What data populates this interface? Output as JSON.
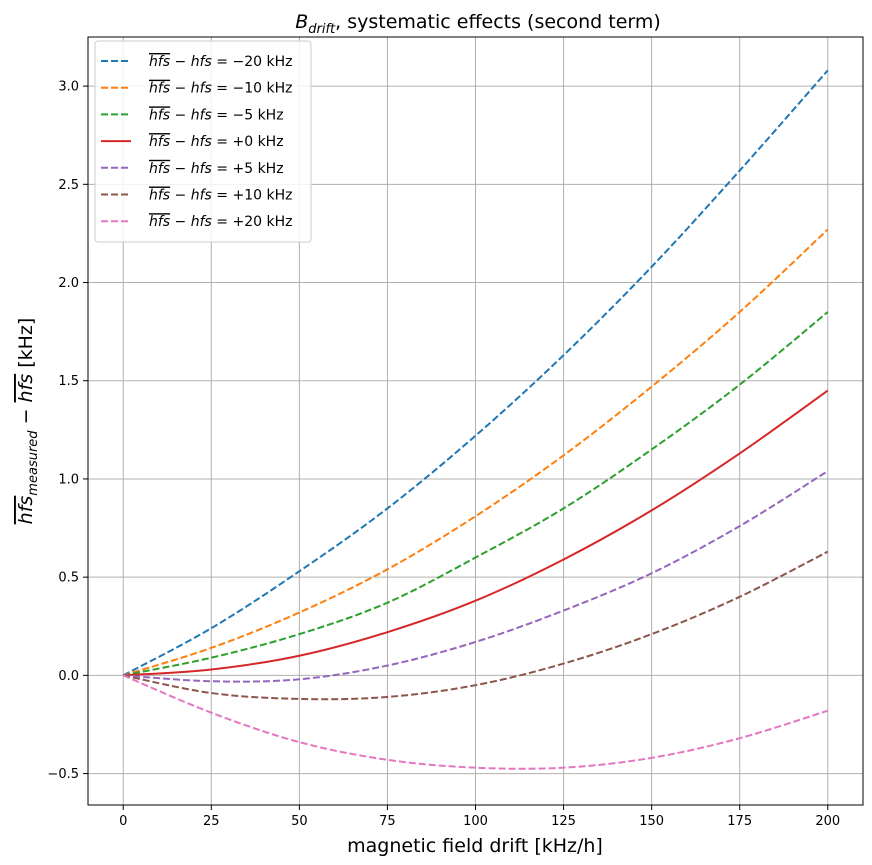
{
  "chart_data": {
    "type": "line",
    "title": "B_drift, systematic effects (second term)",
    "xlabel": "magnetic field drift [kHz/h]",
    "ylabel": "hfs_measured − hfs [kHz]",
    "xlim": [
      -10,
      210
    ],
    "ylim": [
      -0.66,
      3.25
    ],
    "xticks": [
      0,
      25,
      50,
      75,
      100,
      125,
      150,
      175,
      200
    ],
    "yticks": [
      -0.5,
      0.0,
      0.5,
      1.0,
      1.5,
      2.0,
      2.5,
      3.0
    ],
    "xtick_labels": [
      "0",
      "25",
      "50",
      "75",
      "100",
      "125",
      "150",
      "175",
      "200"
    ],
    "ytick_labels": [
      "−0.5",
      "0.0",
      "0.5",
      "1.0",
      "1.5",
      "2.0",
      "2.5",
      "3.0"
    ],
    "grid": true,
    "legend_position": "upper-left",
    "x": [
      0,
      25,
      50,
      75,
      100,
      125,
      150,
      175,
      200
    ],
    "series": [
      {
        "name": "hfs − hfs = −20 kHz",
        "color": "#1f77b4",
        "dash": true,
        "values": [
          0.0,
          0.24,
          0.53,
          0.85,
          1.22,
          1.63,
          2.08,
          2.57,
          3.08
        ]
      },
      {
        "name": "hfs − hfs = −10 kHz",
        "color": "#ff7f0e",
        "dash": true,
        "values": [
          0.0,
          0.14,
          0.32,
          0.54,
          0.81,
          1.12,
          1.47,
          1.85,
          2.27
        ]
      },
      {
        "name": "hfs − hfs = −5 kHz",
        "color": "#2ca02c",
        "dash": true,
        "values": [
          0.0,
          0.09,
          0.21,
          0.37,
          0.6,
          0.85,
          1.15,
          1.48,
          1.85
        ]
      },
      {
        "name": "hfs − hfs = +0 kHz",
        "color": "#d62728",
        "dash": false,
        "values": [
          0.0,
          0.03,
          0.1,
          0.22,
          0.38,
          0.59,
          0.84,
          1.13,
          1.45
        ]
      },
      {
        "name": "hfs − hfs = +5 kHz",
        "color": "#9467bd",
        "dash": true,
        "values": [
          0.0,
          -0.03,
          -0.02,
          0.05,
          0.17,
          0.33,
          0.52,
          0.76,
          1.04
        ]
      },
      {
        "name": "hfs − hfs = +10 kHz",
        "color": "#8c564b",
        "dash": true,
        "values": [
          0.0,
          -0.09,
          -0.12,
          -0.11,
          -0.05,
          0.06,
          0.21,
          0.4,
          0.63
        ]
      },
      {
        "name": "hfs − hfs = +20 kHz",
        "color": "#e377c2",
        "dash": true,
        "values": [
          0.0,
          -0.19,
          -0.34,
          -0.43,
          -0.47,
          -0.47,
          -0.42,
          -0.32,
          -0.18
        ]
      }
    ]
  }
}
